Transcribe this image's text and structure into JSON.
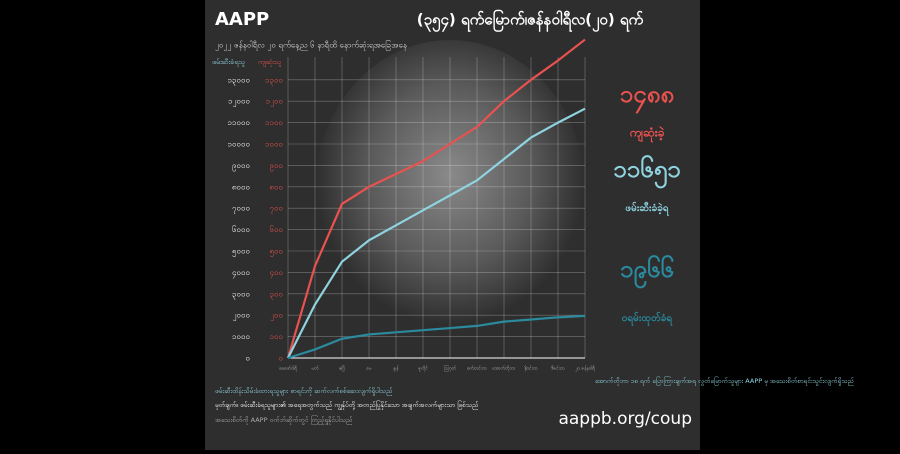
{
  "chart_data": {
    "type": "line",
    "brand": "AAPP",
    "title": "(၃၅၄) ရက်မြောက်၊ဇန်နဝါရီလ(၂၀) ရက်",
    "subtitle": "၂၀၂၂ ဇန်နဝါရီလ ၂၀ ရက်နေ့ည ၆ နာရီထိ နောက်ဆုံးရအခြေအနေ",
    "y_axis_label": "ဖမ်းဆီးခံရသူ",
    "y2_axis_label": "ကျဆုံးသူ",
    "categories": [
      "ဖေဖော်ဝါရီ",
      "မတ်",
      "ဧပြီ",
      "မေ",
      "ဇွန်",
      "ဇူလိုင်",
      "ဩဂုတ်",
      "စက်တင်ဘာ",
      "အောက်တိုဘာ",
      "နိုဝင်ဘာ",
      "ဒီဇင်ဘာ",
      "၂၀ ဇန်နဝါရီ"
    ],
    "series": [
      {
        "name": "ကျဆုံးခဲ့",
        "color": "#e8524f",
        "axis": "y2",
        "values": [
          0,
          430,
          720,
          800,
          860,
          920,
          1000,
          1080,
          1200,
          1300,
          1390,
          1488
        ]
      },
      {
        "name": "ဖမ်းဆီးခံခဲ့ရ",
        "color": "#8fd3e0",
        "values": [
          0,
          2500,
          4500,
          5500,
          6200,
          6900,
          7600,
          8300,
          9300,
          10300,
          11000,
          11651
        ]
      },
      {
        "name": "ဝရမ်းထုတ်ခံရ",
        "color": "#2b8a9e",
        "values": [
          0,
          400,
          900,
          1100,
          1200,
          1300,
          1400,
          1500,
          1700,
          1800,
          1900,
          1966
        ]
      }
    ],
    "totals": [
      "၁၄၈၈",
      "၁၁၆၅၁",
      "၁၉၆၆"
    ],
    "ylim": [
      0,
      15000
    ],
    "yticks": [
      {
        "value": 0,
        "label": "၀"
      },
      {
        "value": 1000,
        "label": "၁၀၀၀"
      },
      {
        "value": 2000,
        "label": "၂၀၀၀"
      },
      {
        "value": 3000,
        "label": "၃၀၀၀"
      },
      {
        "value": 4000,
        "label": "၄၀၀၀"
      },
      {
        "value": 5000,
        "label": "၅၀၀၀"
      },
      {
        "value": 6000,
        "label": "၆၀၀၀"
      },
      {
        "value": 7000,
        "label": "၇၀၀၀"
      },
      {
        "value": 8000,
        "label": "၈၀၀၀"
      },
      {
        "value": 9000,
        "label": "၉၀၀၀"
      },
      {
        "value": 10000,
        "label": "၁၀၀၀၀"
      },
      {
        "value": 11000,
        "label": "၁၁၀၀၀"
      },
      {
        "value": 12000,
        "label": "၁၂၀၀၀"
      },
      {
        "value": 13000,
        "label": "၁၃၀၀၀"
      }
    ],
    "y2lim": [
      0,
      1500
    ],
    "y2ticks": [
      {
        "value": 0,
        "label": "၀"
      },
      {
        "value": 100,
        "label": "၁၀၀"
      },
      {
        "value": 200,
        "label": "၂၀၀"
      },
      {
        "value": 300,
        "label": "၃၀၀"
      },
      {
        "value": 400,
        "label": "၄၀၀"
      },
      {
        "value": 500,
        "label": "၅၀၀"
      },
      {
        "value": 600,
        "label": "၆၀၀"
      },
      {
        "value": 700,
        "label": "၇၀၀"
      },
      {
        "value": 800,
        "label": "၈၀၀"
      },
      {
        "value": 900,
        "label": "၉၀၀"
      },
      {
        "value": 1000,
        "label": "၁၀၀၀"
      },
      {
        "value": 1100,
        "label": "၁၁၀၀"
      },
      {
        "value": 1200,
        "label": "၁၂၀၀"
      },
      {
        "value": 1300,
        "label": "၁၃၀၀"
      }
    ],
    "grid": true,
    "notes": [
      "အောက်တိုဘာ ၁၈ ရက် ပြောကြားချက်အရ လွတ်မြောက်သူများ AAPP မှ အသေးစိတ်စာရင်းသွင်းလျက်ရှိသည်",
      "ဖမ်းဆီးထိန်းသိမ်းခံထားရသူများ စာရင်းကို ဆက်လက်စစ်ဆေးလျက်ရှိပါသည်"
    ],
    "footer": [
      "မှတ်ချက်။ ဖမ်းဆီးခံရသူများ၏ အရေအတွက်သည် ကျွန်ုပ်တို့ အတည်ပြုနိုင်သော အချက်အလက်များသာ ဖြစ်သည်",
      "အသေးစိတ်ကို AAPP ဝက်ဘ်ဆိုက်တွင် ကြည့်ရှုနိုင်ပါသည်"
    ],
    "url": "aappb.org/coup"
  }
}
